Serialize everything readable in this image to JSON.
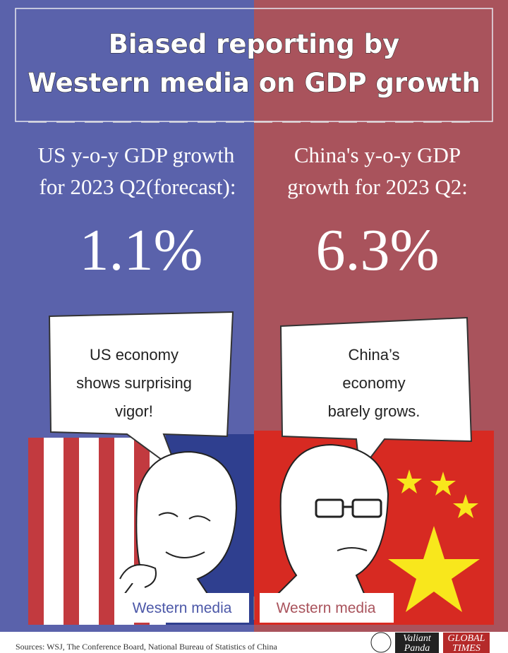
{
  "header": {
    "title_lines": [
      "Biased reporting by",
      "Western media on GDP growth"
    ]
  },
  "panels": [
    {
      "heading_lines": [
        "US y-o-y GDP growth",
        "for 2023 Q2(forecast):"
      ],
      "figure": "1.1%",
      "bubble_lines": [
        "US economy",
        "shows surprising",
        "vigor!"
      ],
      "caption": "Western media"
    },
    {
      "heading_lines": [
        "China's y-o-y GDP",
        "growth for 2023 Q2:"
      ],
      "figure": "6.3%",
      "bubble_lines": [
        "China’s",
        "economy",
        "barely grows."
      ],
      "caption": "Western media"
    }
  ],
  "footer": {
    "sources": "Sources: WSJ, The Conference Board, National Bureau of Statistics of China",
    "logos": [
      "Valiant",
      "Panda",
      "GLOBAL",
      "TIMES"
    ]
  }
}
